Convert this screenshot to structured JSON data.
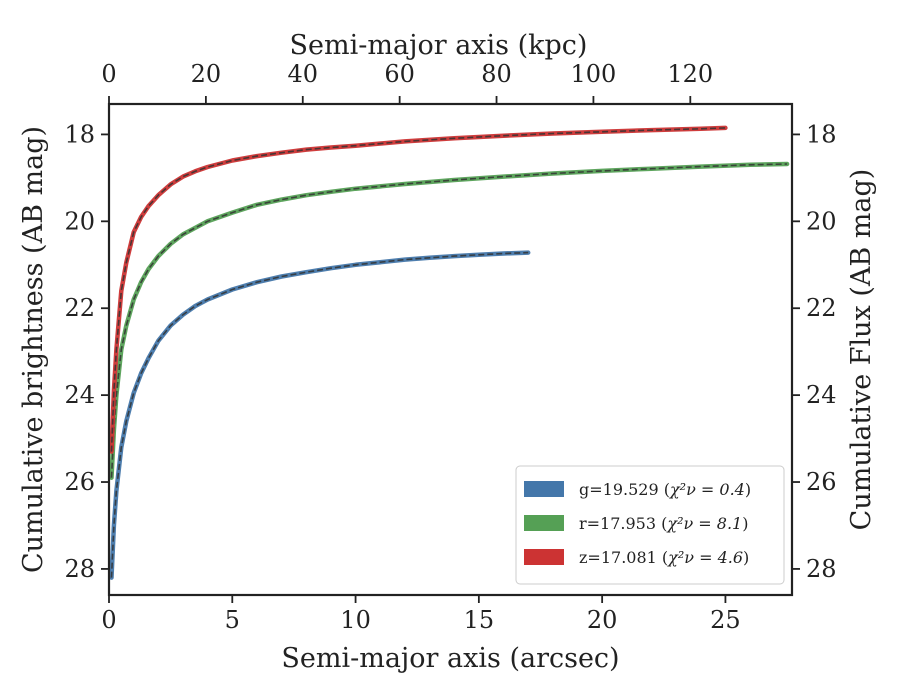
{
  "chart_data": {
    "type": "line",
    "xlabel": "Semi-major axis (arcsec)",
    "ylabel": "Cumulative brightness (AB mag)",
    "x2label": "Semi-major axis (kpc)",
    "y2label": "Cumulative Flux (AB mag)",
    "xlim": [
      0,
      27.7
    ],
    "ylim": [
      28.6,
      17.3
    ],
    "y_inverted": true,
    "x_ticks": [
      0,
      5,
      10,
      15,
      20,
      25
    ],
    "y_ticks": [
      18,
      20,
      22,
      24,
      26,
      28
    ],
    "x2_ticks": [
      0,
      20,
      40,
      60,
      80,
      100,
      120
    ],
    "x2_per_x": 5.09,
    "grid": false,
    "legend": "bottom-right",
    "series": [
      {
        "name": "g=19.529",
        "chi2_label": "χ²ν = 0.4",
        "color": "#4477aa",
        "x": [
          0.1,
          0.2,
          0.3,
          0.5,
          0.7,
          1.0,
          1.3,
          1.6,
          2.0,
          2.5,
          3.0,
          3.5,
          4.0,
          5.0,
          6.0,
          7.0,
          8.0,
          9.0,
          10.0,
          11.0,
          12.0,
          13.0,
          14.0,
          15.0,
          16.0,
          17.0
        ],
        "y": [
          28.2,
          27.0,
          26.2,
          25.2,
          24.6,
          23.95,
          23.5,
          23.15,
          22.75,
          22.4,
          22.15,
          21.95,
          21.8,
          21.57,
          21.4,
          21.27,
          21.17,
          21.08,
          21.0,
          20.94,
          20.88,
          20.84,
          20.8,
          20.77,
          20.74,
          20.72
        ]
      },
      {
        "name": "r=17.953",
        "chi2_label": "χ²ν = 8.1",
        "color": "#55a055",
        "x": [
          0.1,
          0.2,
          0.3,
          0.5,
          0.7,
          1.0,
          1.3,
          1.6,
          2.0,
          2.5,
          3.0,
          3.5,
          4.0,
          5.0,
          6.0,
          7.0,
          8.0,
          9.0,
          10.0,
          12.0,
          14.0,
          16.0,
          18.0,
          20.0,
          22.0,
          24.0,
          26.0,
          27.5
        ],
        "y": [
          25.9,
          24.8,
          24.0,
          22.95,
          22.4,
          21.8,
          21.4,
          21.1,
          20.8,
          20.52,
          20.3,
          20.15,
          20.0,
          19.8,
          19.62,
          19.5,
          19.4,
          19.32,
          19.25,
          19.14,
          19.05,
          18.97,
          18.9,
          18.84,
          18.79,
          18.74,
          18.7,
          18.68
        ]
      },
      {
        "name": "z=17.081",
        "chi2_label": "χ²ν = 4.6",
        "color": "#cc3333",
        "x": [
          0.1,
          0.2,
          0.3,
          0.5,
          0.7,
          1.0,
          1.3,
          1.6,
          2.0,
          2.5,
          3.0,
          3.5,
          4.0,
          5.0,
          6.0,
          7.0,
          8.0,
          9.0,
          10.0,
          12.0,
          14.0,
          16.0,
          18.0,
          20.0,
          22.0,
          24.0,
          25.0
        ],
        "y": [
          25.3,
          23.9,
          22.95,
          21.6,
          20.95,
          20.25,
          19.9,
          19.65,
          19.4,
          19.15,
          18.97,
          18.85,
          18.75,
          18.6,
          18.5,
          18.42,
          18.35,
          18.3,
          18.26,
          18.16,
          18.09,
          18.03,
          17.98,
          17.94,
          17.9,
          17.87,
          17.85
        ]
      }
    ]
  }
}
